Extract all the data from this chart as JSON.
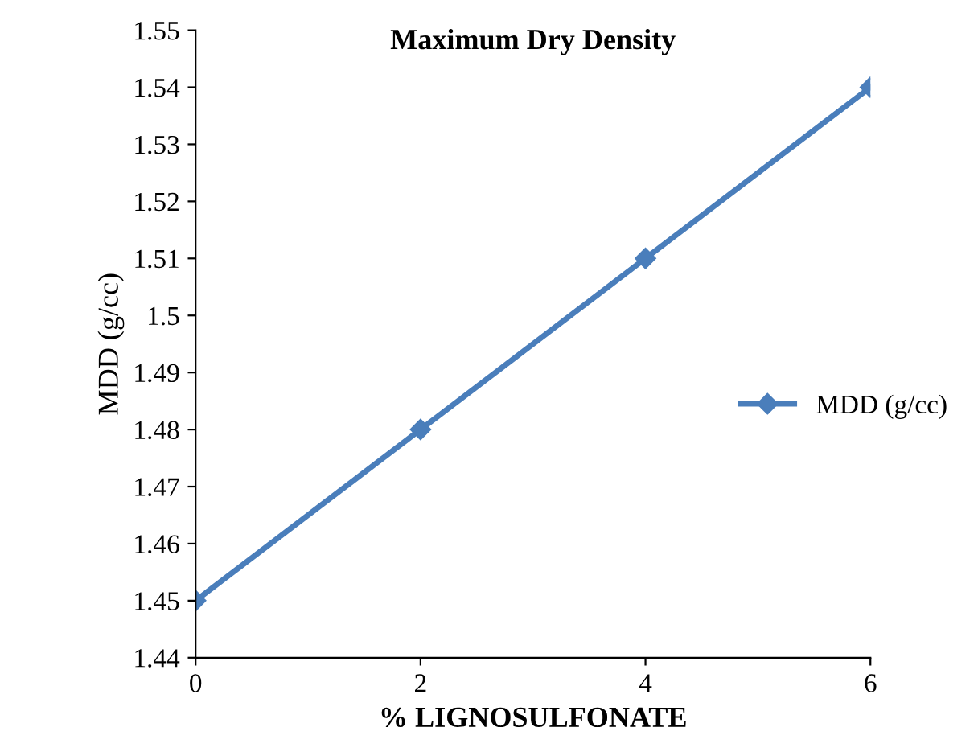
{
  "chart_data": {
    "type": "line",
    "title": "Maximum Dry Density",
    "xlabel": "% LIGNOSULFONATE",
    "ylabel": "MDD (g/cc)",
    "x": [
      0,
      2,
      4,
      6
    ],
    "series": [
      {
        "name": "MDD (g/cc)",
        "color": "#4a7ebb",
        "values": [
          1.45,
          1.48,
          1.51,
          1.54
        ]
      }
    ],
    "xlim": [
      0,
      6
    ],
    "xticks": [
      0,
      2,
      4,
      6
    ],
    "ylim": [
      1.44,
      1.55
    ],
    "yticks": [
      1.44,
      1.45,
      1.46,
      1.47,
      1.48,
      1.49,
      1.5,
      1.51,
      1.52,
      1.53,
      1.54,
      1.55
    ],
    "marker": "diamond",
    "line_style": "solid",
    "grid": false,
    "legend": "right"
  }
}
